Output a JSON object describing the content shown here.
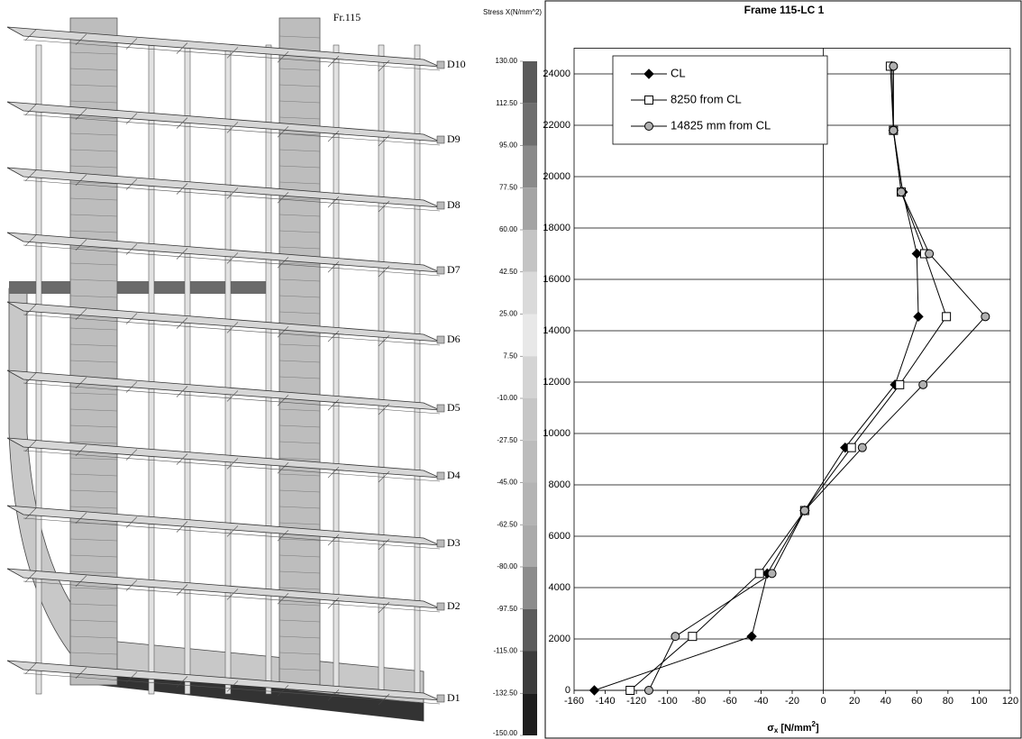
{
  "fem_view": {
    "title": "Fr.115",
    "decks": [
      "D10",
      "D9",
      "D8",
      "D7",
      "D6",
      "D5",
      "D4",
      "D3",
      "D2",
      "D1"
    ],
    "legend": {
      "title": "Stress X(N/mm^2)",
      "levels": [
        {
          "value": 130,
          "label": "130.00"
        },
        {
          "value": 112.5,
          "label": "112.50"
        },
        {
          "value": 95,
          "label": "95.00"
        },
        {
          "value": 77.5,
          "label": "77.50"
        },
        {
          "value": 60,
          "label": "60.00"
        },
        {
          "value": 42.5,
          "label": "42.50"
        },
        {
          "value": 25,
          "label": "25.00"
        },
        {
          "value": 7.5,
          "label": "7.50"
        },
        {
          "value": -10,
          "label": "-10.00"
        },
        {
          "value": -27.5,
          "label": "-27.50"
        },
        {
          "value": -45,
          "label": "-45.00"
        },
        {
          "value": -62.5,
          "label": "-62.50"
        },
        {
          "value": -80,
          "label": "-80.00"
        },
        {
          "value": -97.5,
          "label": "-97.50"
        },
        {
          "value": -115,
          "label": "-115.00"
        },
        {
          "value": -132.5,
          "label": "-132.50"
        },
        {
          "value": -150,
          "label": "-150.00"
        }
      ],
      "band_colors": [
        "#5a5a5a",
        "#6e6e6e",
        "#8a8a8a",
        "#a4a4a4",
        "#c4c4c4",
        "#dadada",
        "#e8e8e8",
        "#d4d4d4",
        "#c6c6c6",
        "#bcbcbc",
        "#b4b4b4",
        "#aaaaaa",
        "#8c8c8c",
        "#5c5c5c",
        "#3c3c3c",
        "#1e1e1e"
      ]
    }
  },
  "chart_data": {
    "type": "line",
    "title": "Frame 115-LC 1",
    "x_label": {
      "symbol": "σ",
      "subscript": "x",
      "unit": "[N/mm",
      "power": "2",
      "close": "]"
    },
    "y": [
      0,
      2100,
      4550,
      7000,
      9450,
      11900,
      14550,
      17000,
      19400,
      21800,
      24300
    ],
    "series": [
      {
        "name": "CL",
        "color": "#000000",
        "marker": "diamond",
        "marker_fill": "#000000",
        "values": [
          -147,
          -46,
          -36,
          -12,
          14,
          46,
          61,
          60,
          51,
          45,
          44
        ]
      },
      {
        "name": "8250 from CL",
        "color": "#000000",
        "marker": "square",
        "marker_fill": "#ffffff",
        "values": [
          -124,
          -84,
          -41,
          -12,
          18,
          49,
          79,
          65,
          50,
          45,
          43
        ]
      },
      {
        "name": "14825 mm from CL",
        "color": "#000000",
        "marker": "circle",
        "marker_fill": "#b0b0b0",
        "values": [
          -112,
          -95,
          -33,
          -12,
          25,
          64,
          104,
          68,
          50,
          45,
          45
        ]
      }
    ],
    "xlim": [
      -160,
      120
    ],
    "xticks": [
      -160,
      -140,
      -120,
      -100,
      -80,
      -60,
      -40,
      -20,
      0,
      20,
      40,
      60,
      80,
      100,
      120
    ],
    "ylim": [
      0,
      25000
    ],
    "yticks": [
      0,
      2000,
      4000,
      6000,
      8000,
      10000,
      12000,
      14000,
      16000,
      18000,
      20000,
      22000,
      24000
    ],
    "grid": true,
    "legend": "upper left"
  }
}
